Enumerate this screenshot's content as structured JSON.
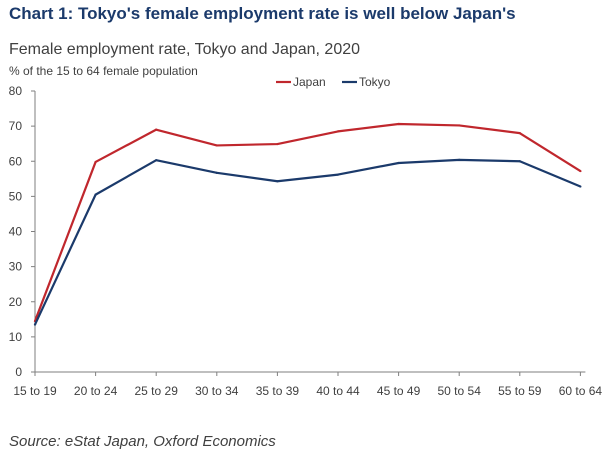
{
  "header": {
    "title": "Chart 1: Tokyo's female employment rate is well below Japan's"
  },
  "footer": {
    "source": "Source: eStat Japan, Oxford Economics"
  },
  "chart_data": {
    "type": "line",
    "title": "Female employment rate, Tokyo and Japan, 2020",
    "ylabel": "% of the 15 to 64 female population",
    "xlabel": "",
    "categories": [
      "15 to 19",
      "20 to 24",
      "25 to 29",
      "30 to 34",
      "35 to 39",
      "40 to 44",
      "45 to 49",
      "50 to 54",
      "55 to 59",
      "60 to 64"
    ],
    "ylim": [
      0,
      80
    ],
    "yticks": [
      0,
      10,
      20,
      30,
      40,
      50,
      60,
      70,
      80
    ],
    "grid": false,
    "legend_position": "top-right",
    "series": [
      {
        "name": "Japan",
        "color": "#c0272d",
        "values": [
          14.5,
          59.8,
          69.0,
          64.5,
          64.9,
          68.5,
          70.6,
          70.2,
          68.0,
          57.2
        ]
      },
      {
        "name": "Tokyo",
        "color": "#1b3a6b",
        "values": [
          13.5,
          50.5,
          60.3,
          56.7,
          54.3,
          56.2,
          59.5,
          60.4,
          60.0,
          52.8
        ]
      }
    ]
  }
}
